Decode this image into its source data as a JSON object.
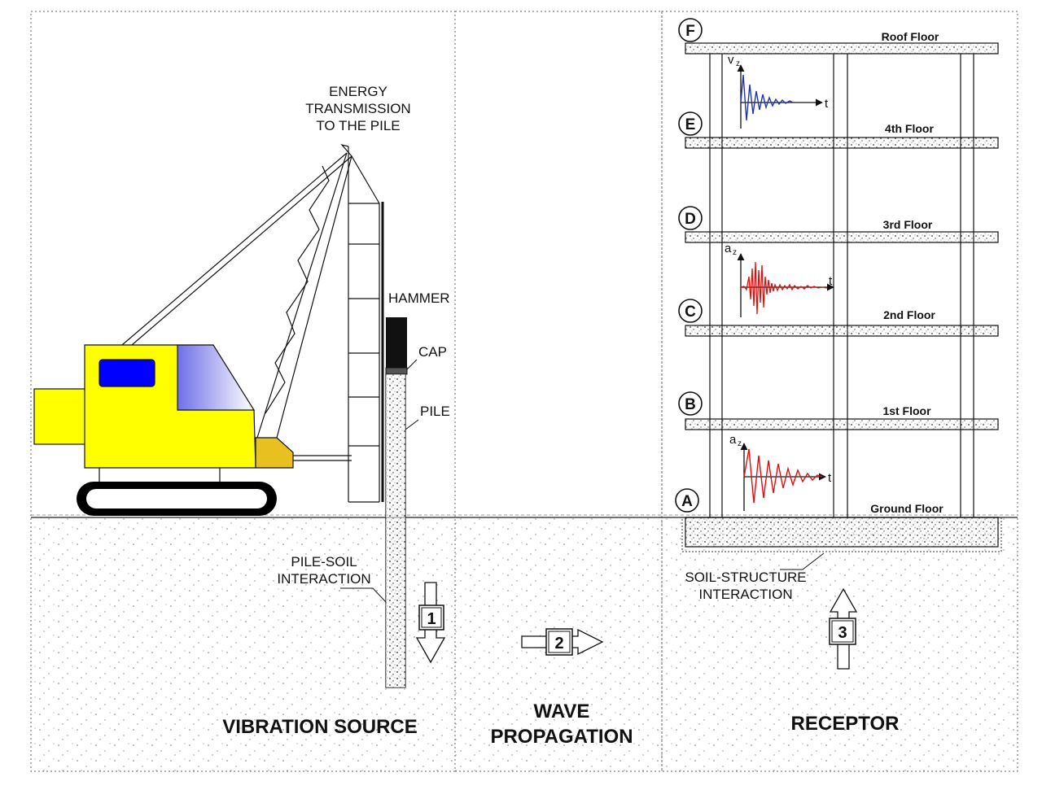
{
  "sections": {
    "source": "VIBRATION SOURCE",
    "propagation_line1": "WAVE",
    "propagation_line2": "PROPAGATION",
    "receptor": "RECEPTOR"
  },
  "labels": {
    "energy_line1": "ENERGY",
    "energy_line2": "TRANSMISSION",
    "energy_line3": "TO THE PILE",
    "hammer": "HAMMER",
    "cap": "CAP",
    "pile": "PILE",
    "pile_soil_line1": "PILE-SOIL",
    "pile_soil_line2": "INTERACTION",
    "ssi_line1": "SOIL-STRUCTURE",
    "ssi_line2": "INTERACTION"
  },
  "steps": [
    "1",
    "2",
    "3"
  ],
  "floors": [
    {
      "marker": "F",
      "name": "Roof Floor"
    },
    {
      "marker": "E",
      "name": "4th Floor"
    },
    {
      "marker": "D",
      "name": "3rd Floor"
    },
    {
      "marker": "C",
      "name": "2nd Floor"
    },
    {
      "marker": "B",
      "name": "1st Floor"
    },
    {
      "marker": "A",
      "name": "Ground Floor"
    }
  ],
  "signals": [
    {
      "y_label": "v",
      "y_sub": "z",
      "x_label": "t",
      "color": "#2233aa"
    },
    {
      "y_label": "a",
      "y_sub": "z",
      "x_label": "t",
      "color": "#dd1111"
    },
    {
      "y_label": "a",
      "y_sub": "z",
      "x_label": "t",
      "color": "#dd1111"
    }
  ],
  "colors": {
    "crane_body": "#ffff00",
    "cab_window": "#0000ff",
    "hammer": "#111111",
    "velocity_trace": "#2233aa",
    "acceleration_trace": "#dd1111"
  }
}
